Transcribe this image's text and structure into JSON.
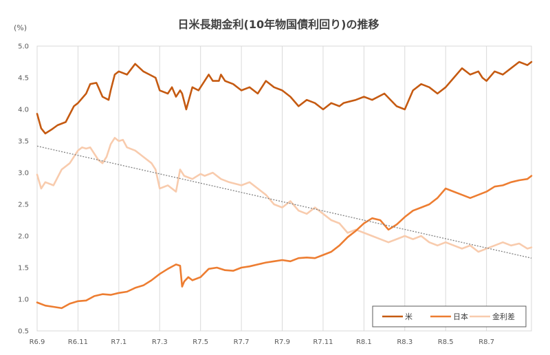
{
  "chart_data": {
    "type": "line",
    "title": "日米長期金利(10年物国債利回り)の推移",
    "yunit": "(%)",
    "ylim": [
      0.5,
      5.0
    ],
    "yticks": [
      "0.5",
      "1.0",
      "1.5",
      "2.0",
      "2.5",
      "3.0",
      "3.5",
      "4.0",
      "4.5",
      "5.0"
    ],
    "xticks": [
      "R6.9",
      "R6.11",
      "R7.1",
      "R7.3",
      "R7.5",
      "R7.7",
      "R7.9",
      "R7.11",
      "R8.1",
      "R8.3",
      "R8.5",
      "R8.7"
    ],
    "x_end": 12.1,
    "grid": "vertical",
    "legend_position": "bottom-right",
    "series": [
      {
        "name": "米",
        "color": "#c55a11",
        "x": [
          0,
          0.1,
          0.2,
          0.35,
          0.5,
          0.7,
          0.9,
          1.0,
          1.2,
          1.3,
          1.45,
          1.5,
          1.6,
          1.75,
          1.8,
          1.9,
          2.0,
          2.2,
          2.4,
          2.6,
          2.75,
          2.9,
          3.0,
          3.2,
          3.3,
          3.4,
          3.5,
          3.55,
          3.65,
          3.8,
          3.95,
          4.05,
          4.2,
          4.3,
          4.45,
          4.5,
          4.6,
          4.8,
          5.0,
          5.2,
          5.4,
          5.6,
          5.8,
          6.0,
          6.2,
          6.4,
          6.6,
          6.8,
          7.0,
          7.2,
          7.4,
          7.5,
          7.8,
          8.0,
          8.2,
          8.5,
          8.8,
          9.0,
          9.1,
          9.2,
          9.4,
          9.6,
          9.8,
          10.0,
          10.2,
          10.4,
          10.6,
          10.8,
          10.9,
          11.0,
          11.2,
          11.4,
          11.6,
          11.8,
          12.0,
          12.1
        ],
        "values": [
          3.93,
          3.7,
          3.62,
          3.68,
          3.75,
          3.8,
          4.05,
          4.1,
          4.25,
          4.4,
          4.42,
          4.35,
          4.2,
          4.15,
          4.3,
          4.55,
          4.6,
          4.55,
          4.72,
          4.6,
          4.55,
          4.5,
          4.3,
          4.25,
          4.35,
          4.2,
          4.3,
          4.25,
          4.0,
          4.35,
          4.3,
          4.4,
          4.55,
          4.45,
          4.45,
          4.55,
          4.45,
          4.4,
          4.3,
          4.35,
          4.25,
          4.45,
          4.35,
          4.3,
          4.2,
          4.05,
          4.15,
          4.1,
          4.0,
          4.1,
          4.05,
          4.1,
          4.15,
          4.2,
          4.15,
          4.25,
          4.05,
          4.0,
          4.15,
          4.3,
          4.4,
          4.35,
          4.25,
          4.35,
          4.5,
          4.65,
          4.55,
          4.6,
          4.5,
          4.45,
          4.6,
          4.55,
          4.65,
          4.75,
          4.7,
          4.75
        ]
      },
      {
        "name": "日本",
        "color": "#ed7d31",
        "x": [
          0,
          0.2,
          0.4,
          0.6,
          0.8,
          1.0,
          1.2,
          1.4,
          1.6,
          1.8,
          2.0,
          2.2,
          2.4,
          2.6,
          2.8,
          3.0,
          3.2,
          3.4,
          3.5,
          3.55,
          3.6,
          3.7,
          3.8,
          4.0,
          4.2,
          4.4,
          4.6,
          4.8,
          5.0,
          5.2,
          5.4,
          5.6,
          5.8,
          6.0,
          6.2,
          6.4,
          6.6,
          6.8,
          7.0,
          7.2,
          7.4,
          7.6,
          7.8,
          8.0,
          8.2,
          8.4,
          8.6,
          8.8,
          9.0,
          9.2,
          9.4,
          9.6,
          9.8,
          10.0,
          10.2,
          10.4,
          10.6,
          10.8,
          11.0,
          11.2,
          11.4,
          11.6,
          11.8,
          12.0,
          12.1
        ],
        "values": [
          0.95,
          0.9,
          0.88,
          0.86,
          0.93,
          0.97,
          0.98,
          1.05,
          1.08,
          1.07,
          1.1,
          1.12,
          1.18,
          1.22,
          1.3,
          1.4,
          1.48,
          1.55,
          1.53,
          1.2,
          1.28,
          1.35,
          1.3,
          1.35,
          1.48,
          1.5,
          1.46,
          1.45,
          1.5,
          1.52,
          1.55,
          1.58,
          1.6,
          1.62,
          1.6,
          1.65,
          1.66,
          1.65,
          1.7,
          1.75,
          1.85,
          1.98,
          2.08,
          2.2,
          2.28,
          2.25,
          2.1,
          2.18,
          2.3,
          2.4,
          2.45,
          2.5,
          2.6,
          2.75,
          2.7,
          2.65,
          2.6,
          2.65,
          2.7,
          2.78,
          2.8,
          2.85,
          2.88,
          2.9,
          2.95
        ]
      },
      {
        "name": "金利差",
        "color": "#f8cbad",
        "x": [
          0,
          0.1,
          0.2,
          0.4,
          0.6,
          0.8,
          1.0,
          1.1,
          1.2,
          1.3,
          1.5,
          1.6,
          1.7,
          1.8,
          1.9,
          2.0,
          2.1,
          2.2,
          2.4,
          2.5,
          2.6,
          2.8,
          2.9,
          3.0,
          3.2,
          3.4,
          3.5,
          3.6,
          3.8,
          4.0,
          4.1,
          4.3,
          4.5,
          4.7,
          5.0,
          5.2,
          5.4,
          5.6,
          5.8,
          6.0,
          6.2,
          6.4,
          6.6,
          6.8,
          7.0,
          7.2,
          7.4,
          7.6,
          7.8,
          8.0,
          8.2,
          8.4,
          8.6,
          8.8,
          9.0,
          9.2,
          9.4,
          9.6,
          9.8,
          10.0,
          10.2,
          10.4,
          10.6,
          10.8,
          11.0,
          11.2,
          11.4,
          11.6,
          11.8,
          12.0,
          12.1
        ],
        "values": [
          2.97,
          2.75,
          2.85,
          2.8,
          3.05,
          3.15,
          3.35,
          3.4,
          3.38,
          3.4,
          3.2,
          3.15,
          3.25,
          3.45,
          3.55,
          3.5,
          3.52,
          3.4,
          3.35,
          3.3,
          3.25,
          3.15,
          3.05,
          2.75,
          2.8,
          2.7,
          3.05,
          2.95,
          2.9,
          2.98,
          2.95,
          3.0,
          2.9,
          2.85,
          2.8,
          2.85,
          2.75,
          2.65,
          2.5,
          2.45,
          2.55,
          2.4,
          2.35,
          2.45,
          2.35,
          2.25,
          2.2,
          2.05,
          2.1,
          2.05,
          2.0,
          1.95,
          1.9,
          1.95,
          2.0,
          1.95,
          2.0,
          1.9,
          1.85,
          1.9,
          1.85,
          1.8,
          1.85,
          1.75,
          1.8,
          1.85,
          1.9,
          1.85,
          1.88,
          1.8,
          1.82
        ]
      }
    ],
    "trendline": {
      "color": "#808080",
      "style": "dotted",
      "x": [
        0,
        12.1
      ],
      "values": [
        3.42,
        1.65
      ]
    }
  }
}
